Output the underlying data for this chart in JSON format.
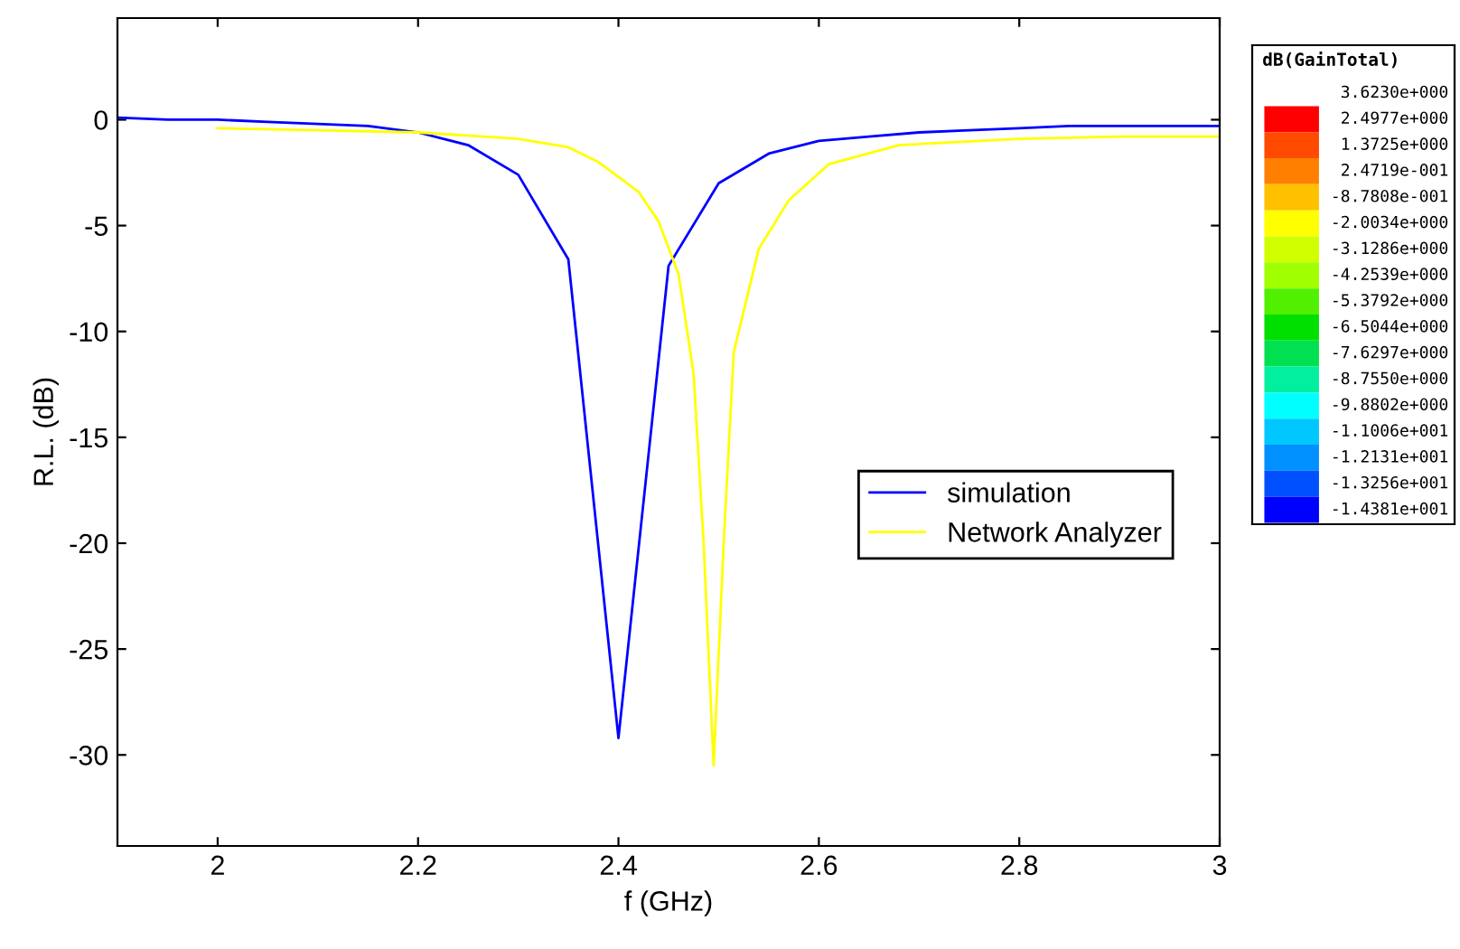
{
  "chart_data": [
    {
      "type": "line",
      "xlabel": "f (GHz)",
      "ylabel": "R.L. (dB)",
      "xlim": [
        1.9,
        3
      ],
      "ylim": [
        -34.3,
        4.8
      ],
      "xticks": [
        2,
        2.2,
        2.4,
        2.6,
        2.8,
        3
      ],
      "yticks": [
        -30,
        -25,
        -20,
        -15,
        -10,
        -5,
        0
      ],
      "grid": false,
      "legend": "center right",
      "marker": "none",
      "line_style": "solid",
      "series": [
        {
          "name": "simulation",
          "color": "#0000ff",
          "x": [
            1.9,
            1.95,
            2.0,
            2.05,
            2.1,
            2.15,
            2.2,
            2.25,
            2.3,
            2.35,
            2.4,
            2.45,
            2.5,
            2.55,
            2.6,
            2.65,
            2.7,
            2.75,
            2.8,
            2.85,
            2.9,
            2.95,
            3.0
          ],
          "values": [
            0.1,
            0,
            0,
            -0.1,
            -0.2,
            -0.3,
            -0.6,
            -1.2,
            -2.6,
            -6.6,
            -29.2,
            -6.9,
            -3.0,
            -1.6,
            -1.0,
            -0.8,
            -0.6,
            -0.5,
            -0.4,
            -0.3,
            -0.3,
            -0.3,
            -0.3
          ]
        },
        {
          "name": "Network Analyzer",
          "color": "#ffff00",
          "x": [
            2.0,
            2.1,
            2.2,
            2.3,
            2.35,
            2.38,
            2.42,
            2.44,
            2.46,
            2.475,
            2.485,
            2.495,
            2.505,
            2.515,
            2.54,
            2.57,
            2.61,
            2.68,
            2.8,
            2.9,
            3.0
          ],
          "values": [
            -0.4,
            -0.5,
            -0.6,
            -0.9,
            -1.3,
            -2.0,
            -3.4,
            -4.8,
            -7.3,
            -12,
            -20,
            -30.5,
            -20,
            -11,
            -6.1,
            -3.8,
            -2.1,
            -1.2,
            -0.9,
            -0.8,
            -0.8
          ]
        }
      ]
    },
    {
      "type": "other",
      "title": "dB(GainTotal)",
      "categories": [
        "3.6230e+000",
        "2.4977e+000",
        "1.3725e+000",
        "2.4719e-001",
        "-8.7808e-001",
        "-2.0034e+000",
        "-3.1286e+000",
        "-4.2539e+000",
        "-5.3792e+000",
        "-6.5044e+000",
        "-7.6297e+000",
        "-8.7550e+000",
        "-9.8802e+000",
        "-1.1006e+001",
        "-1.2131e+001",
        "-1.3256e+001",
        "-1.4381e+001"
      ],
      "colors": [
        "#ff0000",
        "#ff4a00",
        "#ff8000",
        "#ffc000",
        "#ffff00",
        "#d0ff00",
        "#a0ff00",
        "#50f000",
        "#00e000",
        "#00e050",
        "#00f0a0",
        "#00ffff",
        "#00c8ff",
        "#0090ff",
        "#0050ff",
        "#0000ff"
      ]
    }
  ]
}
